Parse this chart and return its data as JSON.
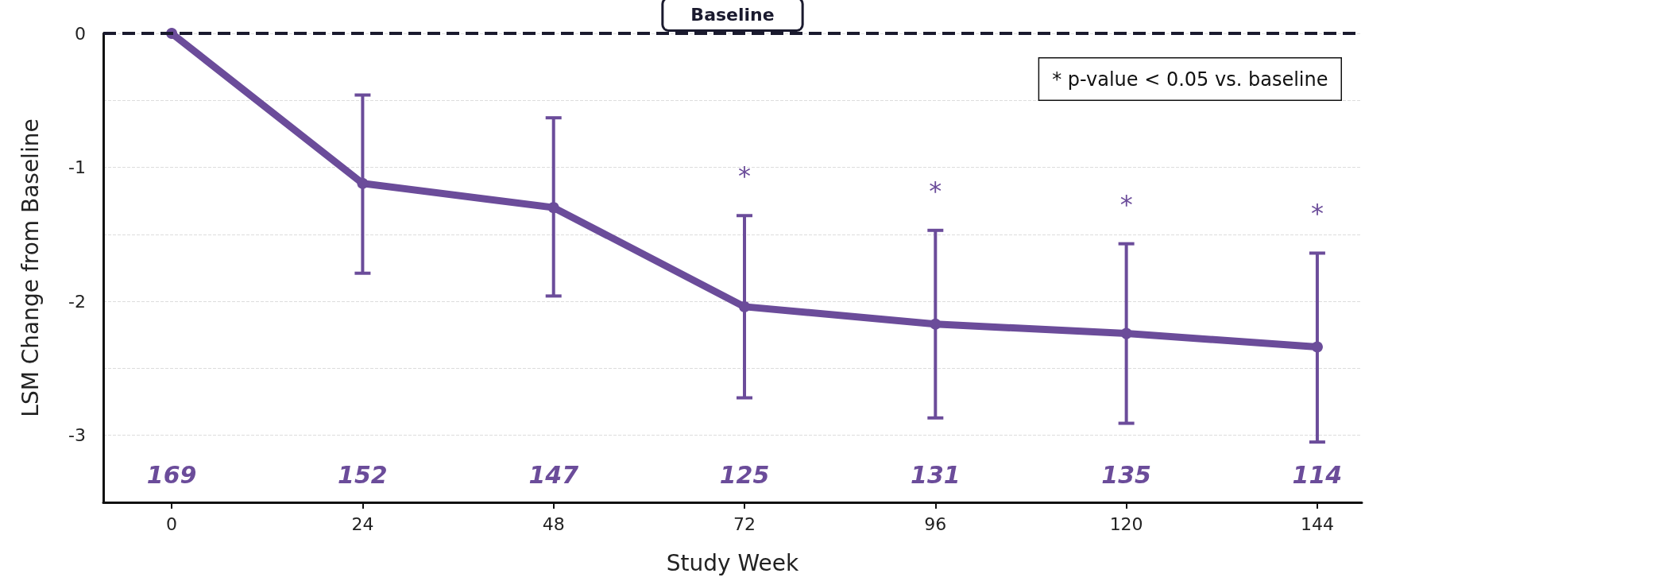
{
  "chart_data": {
    "type": "line",
    "xlabel": "Study Week",
    "ylabel": "LSM Change from Baseline",
    "x": [
      0,
      24,
      48,
      72,
      96,
      120,
      144
    ],
    "series": [
      {
        "color": "#6b4c9a",
        "values": [
          0,
          -1.12,
          -1.3,
          -2.04,
          -2.17,
          -2.24,
          -2.34
        ],
        "errors": [
          null,
          [
            -1.79,
            -0.46
          ],
          [
            -1.96,
            -0.63
          ],
          [
            -2.72,
            -1.36
          ],
          [
            -2.87,
            -1.47
          ],
          [
            -2.91,
            -1.57
          ],
          [
            -3.05,
            -1.64
          ]
        ]
      }
    ],
    "xlim": [
      -8.6,
      149.6
    ],
    "xticks": [
      0,
      24,
      48,
      72,
      96,
      120,
      144
    ],
    "ylim": [
      -3.5,
      0
    ],
    "yticks": [
      -3,
      {
        "value": -2.5,
        "label": null
      },
      -2,
      {
        "value": -1.5,
        "label": null
      },
      -1,
      {
        "value": -0.5,
        "label": null
      },
      0
    ],
    "grid": "y",
    "marker": "circle",
    "line_style": "solid",
    "ref_lines": [
      {
        "axis": "y",
        "value": 0,
        "label": "Baseline",
        "color": "#1a1a2e",
        "line_style": "dashed"
      }
    ],
    "annotations": [
      "* p-value < 0.05 vs. baseline",
      "*",
      "*",
      "*",
      "*",
      "169",
      "152",
      "147",
      "125",
      "131",
      "135",
      "114"
    ]
  }
}
